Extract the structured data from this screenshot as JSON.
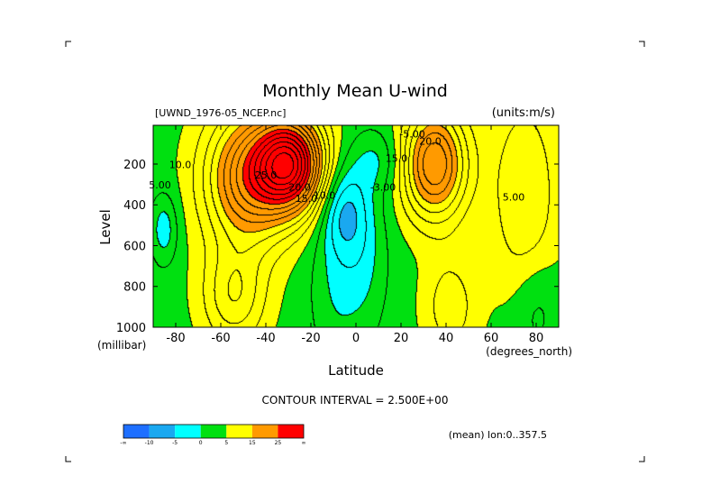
{
  "chart_data": {
    "type": "heatmap",
    "title": "Monthly Mean U-wind",
    "dataset": "[UWND_1976-05_NCEP.nc]",
    "units": "(units:m/s)",
    "xlabel": "Latitude",
    "x_unit": "(degrees_north)",
    "ylabel": "Level",
    "y_unit": "(millibar)",
    "xlim": [
      -90,
      90
    ],
    "ylim": [
      1000,
      10
    ],
    "y_reversed": true,
    "x_ticks": [
      -80,
      -60,
      -40,
      -20,
      0,
      20,
      40,
      60,
      80
    ],
    "y_ticks": [
      200,
      400,
      600,
      800,
      1000
    ],
    "grid": false,
    "contour_interval": "CONTOUR INTERVAL = 2.500E+00",
    "footer": "(mean) lon:0..357.5",
    "colorbar": {
      "labels": [
        "-∞",
        "-10",
        "-5",
        "0",
        "5",
        "15",
        "25",
        "∞"
      ],
      "colors": [
        "#1e6fff",
        "#1aa8f0",
        "#00ffff",
        "#00e010",
        "#ffff00",
        "#ff9a00",
        "#ff0000"
      ]
    },
    "contour_labels": [
      {
        "text": "25.0",
        "x": -40,
        "y": 270
      },
      {
        "text": "20.0",
        "x": -25,
        "y": 330
      },
      {
        "text": "15.0",
        "x": -22,
        "y": 385
      },
      {
        "text": "10.0",
        "x": -14,
        "y": 370
      },
      {
        "text": "10.0",
        "x": -78,
        "y": 220
      },
      {
        "text": "5.00",
        "x": -87,
        "y": 320
      },
      {
        "text": "5.00",
        "x": 70,
        "y": 380
      },
      {
        "text": "-3.00",
        "x": 12,
        "y": 330
      },
      {
        "text": "15.0",
        "x": 18,
        "y": 190
      },
      {
        "text": "-5.00",
        "x": 25,
        "y": 70
      },
      {
        "text": "20.0",
        "x": 33,
        "y": 105
      }
    ],
    "field_model": {
      "jets": [
        {
          "lat": -29,
          "p": 200,
          "amp": 28.5,
          "sx": 15,
          "sy": 230
        },
        {
          "lat": -48,
          "p": 270,
          "amp": 17.5,
          "sx": 19,
          "sy": 330
        },
        {
          "lat": -54,
          "p": 850,
          "amp": 8.0,
          "sx": 14,
          "sy": 240
        },
        {
          "lat": 35,
          "p": 200,
          "amp": 18.5,
          "sx": 14,
          "sy": 270
        },
        {
          "lat": 42,
          "p": 900,
          "amp": 5.0,
          "sx": 12,
          "sy": 250
        },
        {
          "lat": 75,
          "p": 350,
          "amp": 6.0,
          "sx": 15,
          "sy": 500
        },
        {
          "lat": -5,
          "p": 430,
          "amp": -8.0,
          "sx": 10,
          "sy": 220
        },
        {
          "lat": -8,
          "p": 800,
          "amp": -4.0,
          "sx": 12,
          "sy": 380
        },
        {
          "lat": 5,
          "p": 650,
          "amp": -3.5,
          "sx": 10,
          "sy": 380
        },
        {
          "lat": 10,
          "p": 180,
          "amp": -4.0,
          "sx": 12,
          "sy": 150
        },
        {
          "lat": -85,
          "p": 520,
          "amp": -5.5,
          "sx": 6,
          "sy": 170
        },
        {
          "lat": 80,
          "p": 900,
          "amp": -3.0,
          "sx": 10,
          "sy": 250
        }
      ],
      "background": 4.0
    }
  }
}
